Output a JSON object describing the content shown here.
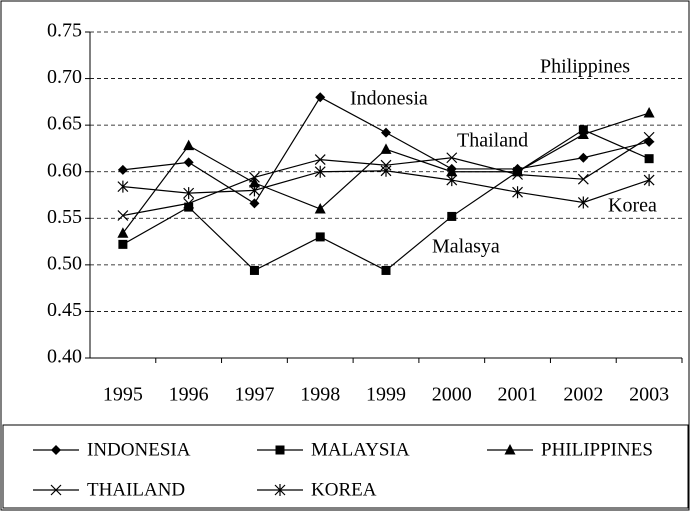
{
  "chart_data": {
    "type": "line",
    "categories": [
      "1995",
      "1996",
      "1997",
      "1998",
      "1999",
      "2000",
      "2001",
      "2002",
      "2003"
    ],
    "series": [
      {
        "name": "INDONESIA",
        "color": "#000000",
        "marker": "diamond",
        "values": [
          0.602,
          0.61,
          0.566,
          0.68,
          0.642,
          0.603,
          0.603,
          0.615,
          0.632
        ]
      },
      {
        "name": "MALAYSIA",
        "color": "#000000",
        "marker": "square",
        "values": [
          0.522,
          0.562,
          0.494,
          0.53,
          0.494,
          0.552,
          0.6,
          0.645,
          0.614
        ]
      },
      {
        "name": "PHILIPPINES",
        "color": "#000000",
        "marker": "triangle",
        "values": [
          0.534,
          0.628,
          0.588,
          0.56,
          0.624,
          0.6,
          0.6,
          0.64,
          0.663
        ]
      },
      {
        "name": "THAILAND",
        "color": "#000000",
        "marker": "x",
        "values": [
          0.553,
          0.566,
          0.594,
          0.613,
          0.607,
          0.615,
          0.597,
          0.592,
          0.637
        ]
      },
      {
        "name": "KOREA",
        "color": "#000000",
        "marker": "star",
        "values": [
          0.584,
          0.577,
          0.58,
          0.6,
          0.601,
          0.591,
          0.578,
          0.567,
          0.591
        ]
      }
    ],
    "annotations": [
      "Indonesia",
      "Philippines",
      "Thailand",
      "Korea",
      "Malasya"
    ],
    "ylim": [
      0.4,
      0.75
    ],
    "yticks": [
      {
        "value": 0.4,
        "label": "0.40"
      },
      {
        "value": 0.45,
        "label": "0.45"
      },
      {
        "value": 0.5,
        "label": "0.50"
      },
      {
        "value": 0.55,
        "label": "0.55"
      },
      {
        "value": 0.6,
        "label": "0.60"
      },
      {
        "value": 0.65,
        "label": "0.65"
      },
      {
        "value": 0.7,
        "label": "0.70"
      },
      {
        "value": 0.75,
        "label": "0.75"
      }
    ],
    "grid": true,
    "legend": "bottom"
  }
}
